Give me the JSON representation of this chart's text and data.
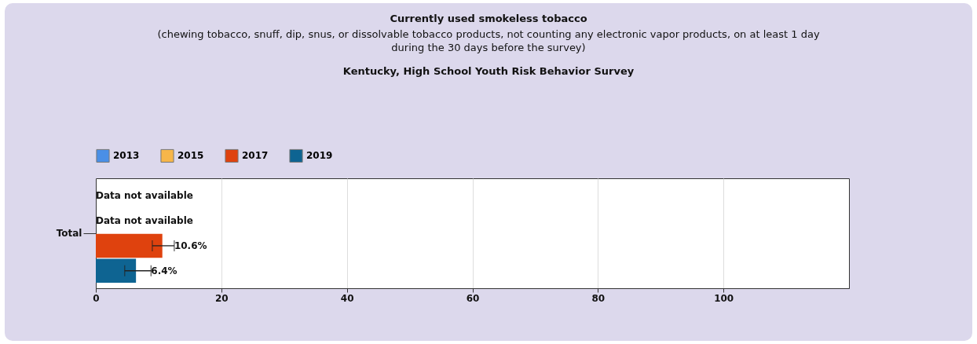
{
  "chart_data": {
    "type": "bar",
    "orientation": "horizontal",
    "title": "Currently used smokeless tobacco",
    "subtitle": "(chewing tobacco, snuff, dip, snus, or dissolvable tobacco products, not counting any electronic vapor products, on at least 1 day during the 30 days before the survey)",
    "annotations": [
      "Kentucky, High School Youth Risk Behavior Survey"
    ],
    "categories": [
      "Total"
    ],
    "series": [
      {
        "name": "2013",
        "color": "#4a8fe6",
        "values": [
          null
        ],
        "value_labels": [
          "Data not available"
        ]
      },
      {
        "name": "2015",
        "color": "#f7b64a",
        "values": [
          null
        ],
        "value_labels": [
          "Data not available"
        ]
      },
      {
        "name": "2017",
        "color": "#df420e",
        "values": [
          10.6
        ],
        "errors": [
          [
            9.0,
            12.5
          ]
        ],
        "value_labels": [
          "10.6%"
        ]
      },
      {
        "name": "2019",
        "color": "#0e6492",
        "values": [
          6.4
        ],
        "errors": [
          [
            4.6,
            8.8
          ]
        ],
        "value_labels": [
          "6.4%"
        ]
      }
    ],
    "xlim": [
      0,
      120
    ],
    "xticks": [
      0,
      20,
      40,
      60,
      80,
      100
    ],
    "grid": "x",
    "legend": "top"
  }
}
